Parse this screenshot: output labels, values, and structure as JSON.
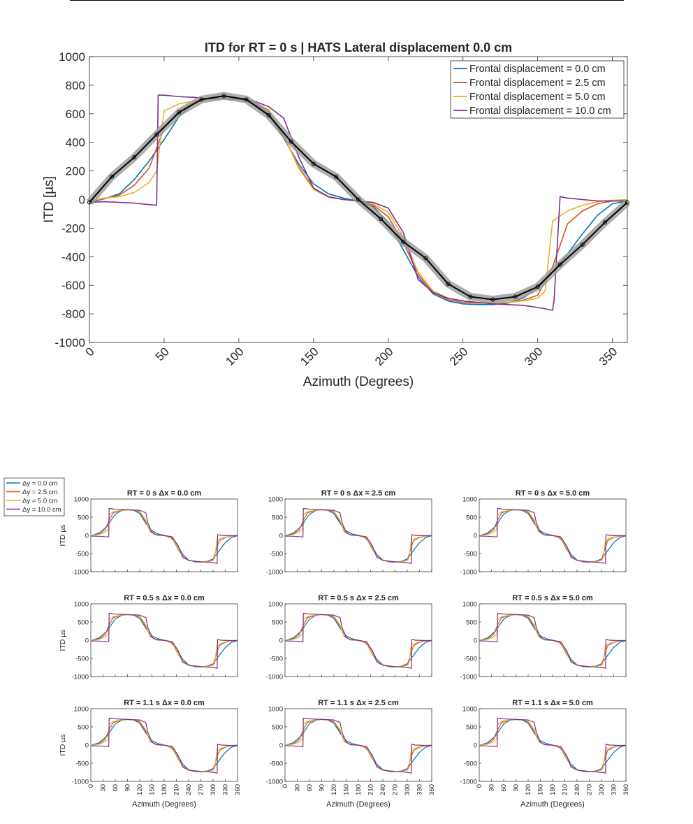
{
  "colors": {
    "dy0": "#0072BD",
    "dy25": "#D95319",
    "dy50": "#EDB120",
    "dy100": "#7E2F8E",
    "reference": "#000000",
    "reference_band": "#9a9a9a"
  },
  "chart_data": [
    {
      "id": "main",
      "type": "line",
      "title": "ITD for RT = 0 s | HATS Lateral displacement 0.0 cm",
      "xlabel": "Azimuth (Degrees)",
      "ylabel": "ITD [µs]",
      "xlim": [
        0,
        360
      ],
      "ylim": [
        -1000,
        1000
      ],
      "xticks": [
        "0",
        "50",
        "100",
        "150",
        "200",
        "250",
        "300",
        "350"
      ],
      "yticks": [
        "-1000",
        "-800",
        "-600",
        "-400",
        "-200",
        "0",
        "200",
        "400",
        "600",
        "800",
        "1000"
      ],
      "legend_position": "top-right",
      "grid": false,
      "series": [
        {
          "name": "Frontal displacement = 0.0 cm",
          "color_key": "dy0",
          "x": [
            0,
            10,
            20,
            30,
            40,
            50,
            60,
            70,
            80,
            90,
            100,
            110,
            120,
            130,
            140,
            150,
            160,
            170,
            180,
            190,
            200,
            210,
            220,
            230,
            240,
            250,
            260,
            270,
            280,
            290,
            300,
            310,
            320,
            330,
            340,
            350,
            360
          ],
          "y": [
            -20,
            5,
            40,
            140,
            270,
            420,
            580,
            680,
            700,
            705,
            700,
            675,
            600,
            430,
            250,
            110,
            40,
            10,
            -10,
            -50,
            -160,
            -350,
            -540,
            -660,
            -710,
            -730,
            -735,
            -735,
            -725,
            -690,
            -620,
            -510,
            -380,
            -240,
            -110,
            -30,
            -10
          ]
        },
        {
          "name": "Frontal displacement = 2.5 cm",
          "color_key": "dy25",
          "x": [
            0,
            10,
            20,
            30,
            40,
            50,
            60,
            70,
            80,
            90,
            100,
            110,
            120,
            130,
            140,
            150,
            160,
            170,
            180,
            190,
            200,
            210,
            220,
            230,
            240,
            250,
            260,
            270,
            280,
            290,
            300,
            310,
            320,
            330,
            340,
            350,
            360
          ],
          "y": [
            -10,
            5,
            30,
            100,
            220,
            500,
            620,
            680,
            700,
            705,
            700,
            680,
            620,
            440,
            230,
            80,
            20,
            0,
            -10,
            -40,
            -120,
            -300,
            -520,
            -650,
            -700,
            -720,
            -725,
            -725,
            -720,
            -705,
            -670,
            -470,
            -170,
            -80,
            -30,
            -10,
            -5
          ]
        },
        {
          "name": "Frontal displacement = 5.0 cm",
          "color_key": "dy50",
          "x": [
            0,
            10,
            20,
            30,
            40,
            45,
            50,
            60,
            70,
            80,
            90,
            100,
            110,
            120,
            130,
            140,
            150,
            160,
            170,
            180,
            190,
            200,
            210,
            220,
            230,
            240,
            250,
            260,
            270,
            280,
            290,
            300,
            305,
            310,
            320,
            330,
            340,
            350,
            360
          ],
          "y": [
            -10,
            10,
            20,
            50,
            120,
            200,
            620,
            670,
            690,
            700,
            705,
            700,
            680,
            630,
            450,
            220,
            70,
            15,
            0,
            -10,
            -30,
            -90,
            -260,
            -510,
            -640,
            -690,
            -710,
            -720,
            -725,
            -720,
            -710,
            -690,
            -640,
            -150,
            -80,
            -40,
            -15,
            -5,
            0
          ]
        },
        {
          "name": "Frontal displacement = 10.0 cm",
          "color_key": "dy100",
          "x": [
            0,
            10,
            20,
            30,
            40,
            45,
            46,
            50,
            60,
            70,
            80,
            90,
            100,
            110,
            120,
            130,
            140,
            150,
            160,
            170,
            180,
            190,
            200,
            210,
            220,
            230,
            240,
            250,
            260,
            270,
            280,
            290,
            300,
            310,
            311,
            315,
            320,
            330,
            340,
            350,
            360
          ],
          "y": [
            -20,
            -15,
            -20,
            -25,
            -35,
            -40,
            730,
            730,
            720,
            715,
            705,
            705,
            700,
            690,
            650,
            570,
            300,
            80,
            20,
            0,
            -10,
            -20,
            -60,
            -230,
            -560,
            -650,
            -690,
            -710,
            -720,
            -730,
            -735,
            -740,
            -755,
            -775,
            -700,
            20,
            10,
            0,
            -10,
            -10,
            -10
          ]
        },
        {
          "name": "",
          "color_key": "reference",
          "band": true,
          "x": [
            0,
            15,
            30,
            45,
            60,
            75,
            90,
            105,
            120,
            135,
            150,
            165,
            180,
            195,
            210,
            225,
            240,
            255,
            270,
            285,
            300,
            315,
            330,
            345,
            360
          ],
          "y": [
            -20,
            160,
            295,
            455,
            610,
            700,
            725,
            700,
            590,
            405,
            250,
            160,
            0,
            -135,
            -295,
            -410,
            -590,
            -680,
            -700,
            -680,
            -610,
            -455,
            -315,
            -160,
            -20
          ]
        }
      ]
    },
    {
      "id": "s11",
      "type": "line",
      "title": "RT = 0 s    Δx = 0.0 cm",
      "ylabel": "ITD µs",
      "xlabel": "",
      "variant": 0,
      "xlim": [
        0,
        360
      ],
      "ylim": [
        -1000,
        1000
      ],
      "xticks": [
        "0",
        "30",
        "60",
        "90",
        "120",
        "150",
        "180",
        "210",
        "240",
        "270",
        "300",
        "330",
        "360"
      ],
      "yticks": [
        "-1000",
        "-500",
        "0",
        "500",
        "1000"
      ]
    },
    {
      "id": "s12",
      "type": "line",
      "title": "RT = 0 s    Δx = 2.5 cm",
      "ylabel": "",
      "xlabel": "",
      "variant": 1,
      "xlim": [
        0,
        360
      ],
      "ylim": [
        -1000,
        1000
      ],
      "xticks": [
        "0",
        "30",
        "60",
        "90",
        "120",
        "150",
        "180",
        "210",
        "240",
        "270",
        "300",
        "330",
        "360"
      ],
      "yticks": [
        "-1000",
        "-500",
        "0",
        "500",
        "1000"
      ]
    },
    {
      "id": "s13",
      "type": "line",
      "title": "RT = 0 s    Δx = 5.0 cm",
      "ylabel": "",
      "xlabel": "",
      "variant": 2,
      "xlim": [
        0,
        360
      ],
      "ylim": [
        -1000,
        1000
      ],
      "xticks": [
        "0",
        "30",
        "60",
        "90",
        "120",
        "150",
        "180",
        "210",
        "240",
        "270",
        "300",
        "330",
        "360"
      ],
      "yticks": [
        "-1000",
        "-500",
        "0",
        "500",
        "1000"
      ]
    },
    {
      "id": "s21",
      "type": "line",
      "title": "RT = 0.5 s    Δx = 0.0 cm",
      "ylabel": "ITD µs",
      "xlabel": "",
      "variant": 0,
      "xlim": [
        0,
        360
      ],
      "ylim": [
        -1000,
        1000
      ],
      "xticks": [
        "0",
        "30",
        "60",
        "90",
        "120",
        "150",
        "180",
        "210",
        "240",
        "270",
        "300",
        "330",
        "360"
      ],
      "yticks": [
        "-1000",
        "-500",
        "0",
        "500",
        "1000"
      ]
    },
    {
      "id": "s22",
      "type": "line",
      "title": "RT = 0.5 s    Δx = 2.5 cm",
      "ylabel": "",
      "xlabel": "",
      "variant": 1,
      "xlim": [
        0,
        360
      ],
      "ylim": [
        -1000,
        1000
      ],
      "xticks": [
        "0",
        "30",
        "60",
        "90",
        "120",
        "150",
        "180",
        "210",
        "240",
        "270",
        "300",
        "330",
        "360"
      ],
      "yticks": [
        "-1000",
        "-500",
        "0",
        "500",
        "1000"
      ]
    },
    {
      "id": "s23",
      "type": "line",
      "title": "RT = 0.5 s    Δx = 5.0 cm",
      "ylabel": "",
      "xlabel": "",
      "variant": 2,
      "xlim": [
        0,
        360
      ],
      "ylim": [
        -1000,
        1000
      ],
      "xticks": [
        "0",
        "30",
        "60",
        "90",
        "120",
        "150",
        "180",
        "210",
        "240",
        "270",
        "300",
        "330",
        "360"
      ],
      "yticks": [
        "-1000",
        "-500",
        "0",
        "500",
        "1000"
      ]
    },
    {
      "id": "s31",
      "type": "line",
      "title": "RT = 1.1 s    Δx = 0.0 cm",
      "ylabel": "ITD µs",
      "xlabel": "Azimuth (Degrees)",
      "variant": 0,
      "xlim": [
        0,
        360
      ],
      "ylim": [
        -1000,
        1000
      ],
      "xticks": [
        "0",
        "30",
        "60",
        "90",
        "120",
        "150",
        "180",
        "210",
        "240",
        "270",
        "300",
        "330",
        "360"
      ],
      "yticks": [
        "-1000",
        "-500",
        "0",
        "500",
        "1000"
      ]
    },
    {
      "id": "s32",
      "type": "line",
      "title": "RT = 1.1 s    Δx = 2.5 cm",
      "ylabel": "",
      "xlabel": "Azimuth (Degrees)",
      "variant": 1,
      "xlim": [
        0,
        360
      ],
      "ylim": [
        -1000,
        1000
      ],
      "xticks": [
        "0",
        "30",
        "60",
        "90",
        "120",
        "150",
        "180",
        "210",
        "240",
        "270",
        "300",
        "330",
        "360"
      ],
      "yticks": [
        "-1000",
        "-500",
        "0",
        "500",
        "1000"
      ]
    },
    {
      "id": "s33",
      "type": "line",
      "title": "RT = 1.1 s    Δx = 5.0 cm",
      "ylabel": "",
      "xlabel": "Azimuth (Degrees)",
      "variant": 2,
      "xlim": [
        0,
        360
      ],
      "ylim": [
        -1000,
        1000
      ],
      "xticks": [
        "0",
        "30",
        "60",
        "90",
        "120",
        "150",
        "180",
        "210",
        "240",
        "270",
        "300",
        "330",
        "360"
      ],
      "yticks": [
        "-1000",
        "-500",
        "0",
        "500",
        "1000"
      ]
    }
  ],
  "small_series": [
    {
      "name": "Δy = 0.0 cm",
      "color_key": "dy0",
      "x": [
        0,
        20,
        40,
        50,
        60,
        75,
        90,
        105,
        120,
        135,
        150,
        165,
        180,
        195,
        210,
        225,
        240,
        255,
        270,
        285,
        300,
        315,
        330,
        345,
        360
      ],
      "y": [
        -10,
        60,
        250,
        420,
        580,
        680,
        705,
        690,
        600,
        330,
        120,
        40,
        0,
        -50,
        -220,
        -520,
        -680,
        -730,
        -735,
        -715,
        -650,
        -420,
        -200,
        -60,
        -10
      ]
    },
    {
      "name": "Δy = 2.5 cm",
      "color_key": "dy25",
      "x": [
        0,
        20,
        35,
        45,
        55,
        75,
        90,
        105,
        120,
        135,
        145,
        160,
        180,
        200,
        215,
        230,
        245,
        270,
        290,
        300,
        305,
        315,
        330,
        345,
        360
      ],
      "y": [
        -10,
        30,
        150,
        420,
        620,
        690,
        705,
        695,
        640,
        380,
        120,
        20,
        -5,
        -80,
        -400,
        -620,
        -700,
        -725,
        -715,
        -680,
        -500,
        -150,
        -60,
        -20,
        -5
      ]
    },
    {
      "name": "Δy = 5.0 cm",
      "color_key": "dy50",
      "x": [
        0,
        20,
        35,
        43,
        45,
        55,
        75,
        90,
        105,
        120,
        135,
        145,
        160,
        180,
        200,
        215,
        230,
        245,
        270,
        290,
        300,
        304,
        310,
        330,
        345,
        360
      ],
      "y": [
        -10,
        20,
        90,
        170,
        560,
        650,
        690,
        705,
        700,
        660,
        420,
        100,
        15,
        -5,
        -60,
        -380,
        -630,
        -705,
        -725,
        -715,
        -690,
        -630,
        -120,
        -50,
        -15,
        -5
      ]
    },
    {
      "name": "Δy = 10.0 cm",
      "color_key": "dy100",
      "x": [
        0,
        20,
        40,
        44,
        45,
        60,
        90,
        120,
        135,
        140,
        150,
        160,
        180,
        200,
        215,
        225,
        240,
        270,
        290,
        305,
        310,
        311,
        320,
        340,
        360
      ],
      "y": [
        -20,
        -25,
        -40,
        -45,
        740,
        720,
        705,
        690,
        620,
        350,
        80,
        10,
        -5,
        -40,
        -300,
        -600,
        -690,
        -730,
        -740,
        -760,
        -775,
        20,
        0,
        -10,
        -10
      ]
    }
  ]
}
